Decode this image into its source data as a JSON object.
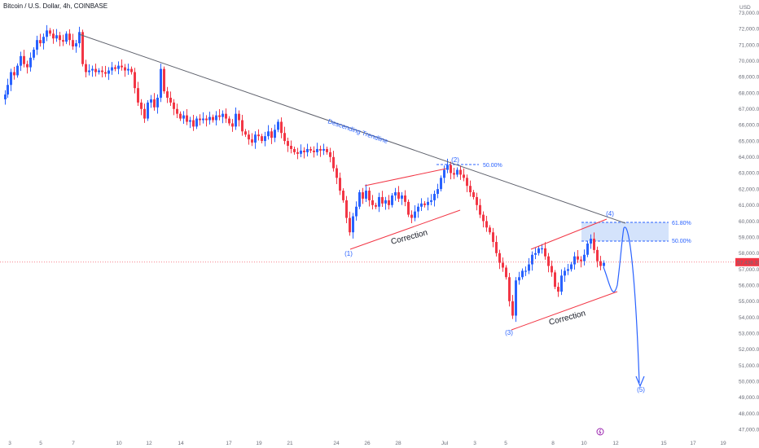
{
  "header": {
    "title": "Bitcoin / U.S. Dollar, 4h, COINBASE"
  },
  "colors": {
    "up": "#2962ff",
    "down": "#f23645",
    "trendline": "#5d606b",
    "price_line": "#f23645",
    "fib_zone": "#cfe0fb",
    "annotation": "#2962ff",
    "channel": "#f23645"
  },
  "chart_data": {
    "type": "candlestick",
    "currency": "USD",
    "ylim": [
      46500,
      73800
    ],
    "y_ticks": [
      "47,000.00",
      "48,000.00",
      "49,000.00",
      "50,000.00",
      "51,000.00",
      "52,000.00",
      "53,000.00",
      "54,000.00",
      "55,000.00",
      "56,000.00",
      "57,000.00",
      "58,000.00",
      "59,000.00",
      "60,000.00",
      "61,000.00",
      "62,000.00",
      "63,000.00",
      "64,000.00",
      "65,000.00",
      "66,000.00",
      "67,000.00",
      "68,000.00",
      "69,000.00",
      "70,000.00",
      "71,000.00",
      "72,000.00",
      "73,000.00"
    ],
    "x_ticks": [
      "3",
      "5",
      "7",
      "10",
      "12",
      "14",
      "17",
      "19",
      "21",
      "24",
      "26",
      "28",
      "Jul",
      "3",
      "5",
      "8",
      "10",
      "12",
      "15",
      "17",
      "19"
    ],
    "last_price": {
      "value": 57438.33,
      "label": "57,438.33"
    },
    "trendline_label": "Descending Trendline",
    "wave_labels": [
      "(1)",
      "(2)",
      "(3)",
      "(4)",
      "(5)"
    ],
    "correction_label": "Correction",
    "fib_levels": [
      {
        "label": "50.00%",
        "value": 63850
      },
      {
        "label": "61.80%",
        "value": 60150
      },
      {
        "label": "50.00%",
        "value": 59050
      }
    ],
    "price_path": [
      [
        0,
        67600
      ],
      [
        5,
        67900
      ],
      [
        8,
        68500
      ],
      [
        12,
        69300
      ],
      [
        16,
        69100
      ],
      [
        20,
        69700
      ],
      [
        24,
        70300
      ],
      [
        28,
        69800
      ],
      [
        32,
        69600
      ],
      [
        36,
        70200
      ],
      [
        40,
        70700
      ],
      [
        44,
        71300
      ],
      [
        48,
        71100
      ],
      [
        52,
        71500
      ],
      [
        56,
        71900
      ],
      [
        60,
        71700
      ],
      [
        64,
        71400
      ],
      [
        68,
        71600
      ],
      [
        72,
        71300
      ],
      [
        76,
        71200
      ],
      [
        80,
        71700
      ],
      [
        84,
        71300
      ],
      [
        88,
        70900
      ],
      [
        92,
        71100
      ],
      [
        96,
        71800
      ],
      [
        100,
        69800
      ],
      [
        104,
        69300
      ],
      [
        108,
        69400
      ],
      [
        112,
        69500
      ],
      [
        116,
        69300
      ],
      [
        120,
        69400
      ],
      [
        124,
        69300
      ],
      [
        128,
        69200
      ],
      [
        132,
        69400
      ],
      [
        136,
        69600
      ],
      [
        140,
        69500
      ],
      [
        144,
        69700
      ],
      [
        148,
        69600
      ],
      [
        152,
        69400
      ],
      [
        156,
        69500
      ],
      [
        160,
        69300
      ],
      [
        164,
        68300
      ],
      [
        168,
        67400
      ],
      [
        172,
        67000
      ],
      [
        176,
        66400
      ],
      [
        180,
        67400
      ],
      [
        184,
        67600
      ],
      [
        188,
        67100
      ],
      [
        192,
        67700
      ],
      [
        196,
        69500
      ],
      [
        200,
        68100
      ],
      [
        204,
        67700
      ],
      [
        208,
        67400
      ],
      [
        212,
        67000
      ],
      [
        216,
        66700
      ],
      [
        220,
        66400
      ],
      [
        224,
        66600
      ],
      [
        228,
        66200
      ],
      [
        232,
        66300
      ],
      [
        236,
        65900
      ],
      [
        240,
        66400
      ],
      [
        244,
        66300
      ],
      [
        248,
        66400
      ],
      [
        252,
        66300
      ],
      [
        256,
        66500
      ],
      [
        260,
        66300
      ],
      [
        264,
        66600
      ],
      [
        268,
        66500
      ],
      [
        272,
        66700
      ],
      [
        276,
        66400
      ],
      [
        280,
        66100
      ],
      [
        284,
        65900
      ],
      [
        288,
        66700
      ],
      [
        292,
        66300
      ],
      [
        296,
        65600
      ],
      [
        300,
        65400
      ],
      [
        304,
        65100
      ],
      [
        308,
        64900
      ],
      [
        312,
        65400
      ],
      [
        316,
        65300
      ],
      [
        320,
        65000
      ],
      [
        324,
        65300
      ],
      [
        328,
        65600
      ],
      [
        332,
        65200
      ],
      [
        336,
        65700
      ],
      [
        340,
        66200
      ],
      [
        344,
        65500
      ],
      [
        348,
        65000
      ],
      [
        352,
        64700
      ],
      [
        356,
        64500
      ],
      [
        360,
        64300
      ],
      [
        364,
        64200
      ],
      [
        368,
        64400
      ],
      [
        372,
        64300
      ],
      [
        376,
        64500
      ],
      [
        380,
        64400
      ],
      [
        384,
        64300
      ],
      [
        388,
        64500
      ],
      [
        392,
        64400
      ],
      [
        396,
        64500
      ],
      [
        400,
        64300
      ],
      [
        404,
        64000
      ],
      [
        408,
        63300
      ],
      [
        412,
        62700
      ],
      [
        416,
        61900
      ],
      [
        420,
        61300
      ],
      [
        424,
        60200
      ],
      [
        428,
        59300
      ],
      [
        432,
        60300
      ],
      [
        436,
        60900
      ],
      [
        440,
        61800
      ],
      [
        444,
        61400
      ],
      [
        448,
        61900
      ],
      [
        452,
        61300
      ],
      [
        456,
        61000
      ],
      [
        460,
        60900
      ],
      [
        464,
        61500
      ],
      [
        468,
        61100
      ],
      [
        472,
        61300
      ],
      [
        476,
        61000
      ],
      [
        480,
        61600
      ],
      [
        484,
        61800
      ],
      [
        488,
        61400
      ],
      [
        492,
        61600
      ],
      [
        496,
        61200
      ],
      [
        500,
        60400
      ],
      [
        504,
        60200
      ],
      [
        508,
        60600
      ],
      [
        512,
        60900
      ],
      [
        516,
        61100
      ],
      [
        520,
        61000
      ],
      [
        524,
        61200
      ],
      [
        528,
        61300
      ],
      [
        532,
        61700
      ],
      [
        536,
        62000
      ],
      [
        540,
        62700
      ],
      [
        544,
        63200
      ],
      [
        548,
        63500
      ],
      [
        552,
        63000
      ],
      [
        556,
        62900
      ],
      [
        560,
        63200
      ],
      [
        564,
        62900
      ],
      [
        568,
        62700
      ],
      [
        572,
        62200
      ],
      [
        576,
        61800
      ],
      [
        580,
        61500
      ],
      [
        584,
        61000
      ],
      [
        588,
        60400
      ],
      [
        592,
        60000
      ],
      [
        596,
        59600
      ],
      [
        600,
        59300
      ],
      [
        604,
        58700
      ],
      [
        608,
        58000
      ],
      [
        612,
        57400
      ],
      [
        616,
        57100
      ],
      [
        620,
        56500
      ],
      [
        624,
        55000
      ],
      [
        628,
        54100
      ],
      [
        632,
        56300
      ],
      [
        636,
        56500
      ],
      [
        640,
        56900
      ],
      [
        644,
        56900
      ],
      [
        648,
        57300
      ],
      [
        652,
        57900
      ],
      [
        656,
        58000
      ],
      [
        660,
        58300
      ],
      [
        664,
        58300
      ],
      [
        668,
        57800
      ],
      [
        672,
        57200
      ],
      [
        676,
        56800
      ],
      [
        680,
        55900
      ],
      [
        684,
        55600
      ],
      [
        688,
        56600
      ],
      [
        692,
        56900
      ],
      [
        696,
        57000
      ],
      [
        700,
        57300
      ],
      [
        704,
        57800
      ],
      [
        708,
        57600
      ],
      [
        712,
        57500
      ],
      [
        716,
        57900
      ],
      [
        720,
        58600
      ],
      [
        724,
        58900
      ],
      [
        728,
        58200
      ],
      [
        732,
        57500
      ],
      [
        736,
        57200
      ],
      [
        740,
        57400
      ]
    ]
  }
}
